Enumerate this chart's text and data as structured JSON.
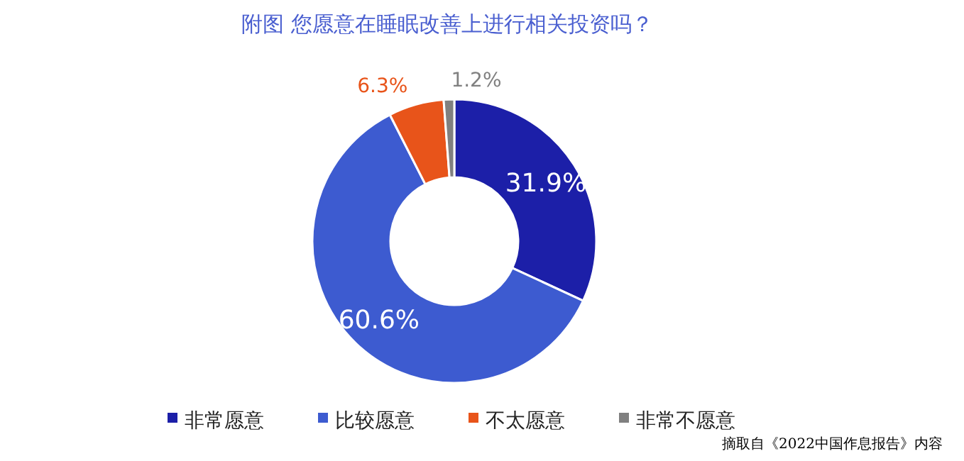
{
  "chart_data": {
    "type": "donut",
    "title": "附图 您愿意在睡眠改善上进行相关投资吗？",
    "categories": [
      "非常愿意",
      "比较愿意",
      "不太愿意",
      "非常不愿意"
    ],
    "values": [
      31.9,
      60.6,
      6.3,
      1.2
    ],
    "colors": [
      "#1c1fa8",
      "#3d5bd0",
      "#e8541a",
      "#808080"
    ],
    "value_labels": [
      "31.9%",
      "60.6%",
      "6.3%",
      "1.2%"
    ],
    "legend": "bottom",
    "annotations": [
      "摘取自《2022中国作息报告》内容"
    ]
  }
}
